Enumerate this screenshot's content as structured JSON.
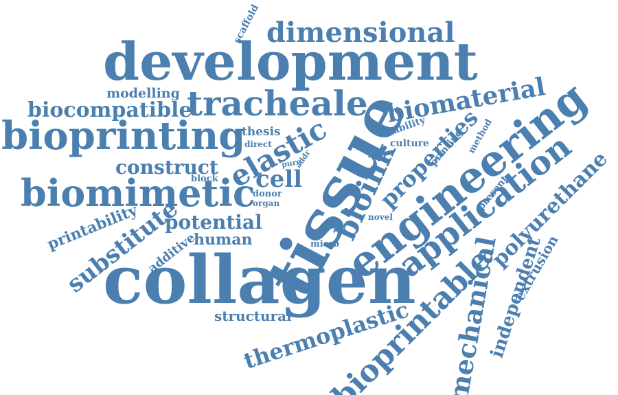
{
  "color": "#4a7fb0",
  "words": {
    "scaffold": "scaffold",
    "dimensional": "dimensional",
    "development": "development",
    "modelling": "modelling",
    "biocompatible": "biocompatible",
    "tracheale": "tracheale",
    "tissue": "tissue",
    "biomaterial": "biomaterial",
    "engineering": "engineering",
    "bioprinting": "bioprinting",
    "thesis": "thesis",
    "direct": "direct",
    "elastic": "elastic",
    "viability": "viability",
    "culture": "culture",
    "properties": "properties",
    "printing": "printing",
    "method": "method",
    "construct": "construct",
    "pure": "pure",
    "addr": "addr",
    "bioink": "bioink",
    "cell": "cell",
    "block": "block",
    "biomimetic": "biomimetic",
    "donor": "donor",
    "organ": "organ",
    "present": "present",
    "application": "application",
    "polyurethane": "polyurethane",
    "printability": "printability",
    "potential": "potential",
    "novel": "novel",
    "substitute": "substitute",
    "additive": "additive",
    "human": "human",
    "micro": "micro",
    "independent": "independent",
    "extrusion": "extrusion",
    "collagen": "collagen",
    "mechanical": "mechanical",
    "bioprintable": "bioprintable",
    "structural": "structural",
    "thermoplastic": "thermoplastic"
  }
}
